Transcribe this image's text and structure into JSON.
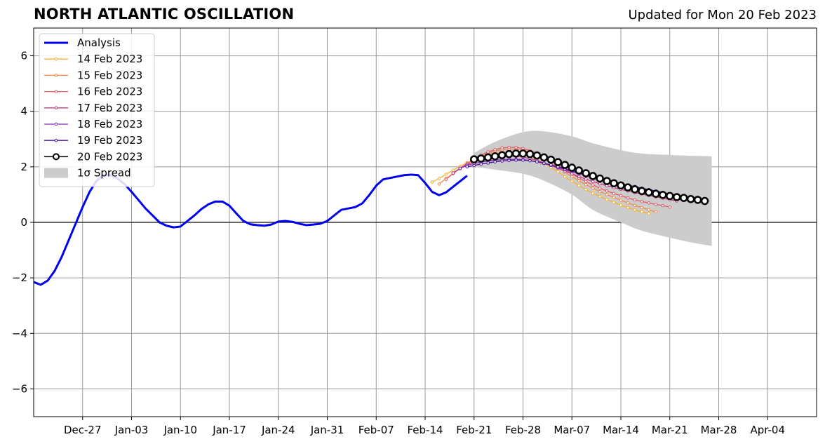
{
  "chart_data": {
    "type": "line",
    "title": "NORTH ATLANTIC OSCILLATION",
    "subtitle": "Updated for Mon 20 Feb 2023",
    "xlabel": "",
    "ylabel": "",
    "xlim": [
      "2022-12-20",
      "2023-04-11"
    ],
    "ylim": [
      -7,
      7
    ],
    "grid": true,
    "legend_position": "top-left",
    "x_tick_labels": [
      "Dec-27",
      "Jan-03",
      "Jan-10",
      "Jan-17",
      "Jan-24",
      "Jan-31",
      "Feb-07",
      "Feb-14",
      "Feb-21",
      "Feb-28",
      "Mar-07",
      "Mar-14",
      "Mar-21",
      "Mar-28",
      "Apr-04"
    ],
    "y_ticks": [
      -6,
      -4,
      -2,
      0,
      2,
      4,
      6
    ],
    "y_tick_labels": [
      "−6",
      "−4",
      "−2",
      "0",
      "2",
      "4",
      "6"
    ],
    "spread": {
      "name": "1σ Spread",
      "color": "#cccccc",
      "x": [
        "2023-02-21",
        "2023-02-24",
        "2023-02-28",
        "2023-03-03",
        "2023-03-07",
        "2023-03-10",
        "2023-03-14",
        "2023-03-17",
        "2023-03-21",
        "2023-03-24",
        "2023-03-27"
      ],
      "upper": [
        2.5,
        2.9,
        3.25,
        3.28,
        3.1,
        2.85,
        2.6,
        2.48,
        2.43,
        2.4,
        2.38
      ],
      "lower": [
        2.0,
        1.9,
        1.75,
        1.5,
        1.0,
        0.45,
        0.0,
        -0.3,
        -0.55,
        -0.72,
        -0.85
      ]
    },
    "series": [
      {
        "name": "Analysis",
        "color": "#0000ee",
        "x": [
          "2022-12-20",
          "2022-12-21",
          "2022-12-22",
          "2022-12-23",
          "2022-12-24",
          "2022-12-25",
          "2022-12-26",
          "2022-12-27",
          "2022-12-28",
          "2022-12-29",
          "2022-12-30",
          "2022-12-31",
          "2023-01-01",
          "2023-01-02",
          "2023-01-03",
          "2023-01-04",
          "2023-01-05",
          "2023-01-06",
          "2023-01-07",
          "2023-01-08",
          "2023-01-09",
          "2023-01-10",
          "2023-01-11",
          "2023-01-12",
          "2023-01-13",
          "2023-01-14",
          "2023-01-15",
          "2023-01-16",
          "2023-01-17",
          "2023-01-18",
          "2023-01-19",
          "2023-01-20",
          "2023-01-21",
          "2023-01-22",
          "2023-01-23",
          "2023-01-24",
          "2023-01-25",
          "2023-01-26",
          "2023-01-27",
          "2023-01-28",
          "2023-01-29",
          "2023-01-30",
          "2023-01-31",
          "2023-02-01",
          "2023-02-02",
          "2023-02-03",
          "2023-02-04",
          "2023-02-05",
          "2023-02-06",
          "2023-02-07",
          "2023-02-08",
          "2023-02-09",
          "2023-02-10",
          "2023-02-11",
          "2023-02-12",
          "2023-02-13",
          "2023-02-14",
          "2023-02-15",
          "2023-02-16",
          "2023-02-17",
          "2023-02-18",
          "2023-02-19",
          "2023-02-20"
        ],
        "y": [
          -2.15,
          -2.25,
          -2.1,
          -1.75,
          -1.25,
          -0.65,
          -0.05,
          0.55,
          1.1,
          1.5,
          1.7,
          1.7,
          1.58,
          1.38,
          1.1,
          0.8,
          0.5,
          0.25,
          0.0,
          -0.12,
          -0.18,
          -0.15,
          0.05,
          0.25,
          0.48,
          0.65,
          0.75,
          0.75,
          0.6,
          0.32,
          0.05,
          -0.07,
          -0.1,
          -0.12,
          -0.08,
          0.03,
          0.05,
          0.02,
          -0.05,
          -0.1,
          -0.08,
          -0.05,
          0.05,
          0.25,
          0.45,
          0.5,
          0.55,
          0.68,
          0.98,
          1.32,
          1.55,
          1.6,
          1.65,
          1.7,
          1.72,
          1.7,
          1.42,
          1.1,
          0.98,
          1.08,
          1.28,
          1.48,
          1.68
        ]
      },
      {
        "name": "14 Feb 2023",
        "color": "#f5b030",
        "x": [
          "2023-02-15",
          "2023-02-16",
          "2023-02-17",
          "2023-02-18",
          "2023-02-19",
          "2023-02-20",
          "2023-02-21",
          "2023-02-22",
          "2023-02-23",
          "2023-02-24",
          "2023-02-25",
          "2023-02-26",
          "2023-02-27",
          "2023-02-28",
          "2023-03-01",
          "2023-03-02",
          "2023-03-03",
          "2023-03-04",
          "2023-03-05",
          "2023-03-06",
          "2023-03-07",
          "2023-03-08",
          "2023-03-09",
          "2023-03-10",
          "2023-03-11",
          "2023-03-12",
          "2023-03-13",
          "2023-03-14",
          "2023-03-15",
          "2023-03-16",
          "2023-03-17",
          "2023-03-18"
        ],
        "y": [
          1.45,
          1.58,
          1.73,
          1.88,
          2.02,
          2.15,
          2.27,
          2.37,
          2.44,
          2.49,
          2.51,
          2.51,
          2.48,
          2.43,
          2.36,
          2.26,
          2.13,
          1.98,
          1.82,
          1.64,
          1.48,
          1.33,
          1.18,
          1.05,
          0.93,
          0.82,
          0.72,
          0.62,
          0.53,
          0.45,
          0.38,
          0.32
        ]
      },
      {
        "name": "15 Feb 2023",
        "color": "#f08a4a",
        "x": [
          "2023-02-16",
          "2023-02-17",
          "2023-02-18",
          "2023-02-19",
          "2023-02-20",
          "2023-02-21",
          "2023-02-22",
          "2023-02-23",
          "2023-02-24",
          "2023-02-25",
          "2023-02-26",
          "2023-02-27",
          "2023-02-28",
          "2023-03-01",
          "2023-03-02",
          "2023-03-03",
          "2023-03-04",
          "2023-03-05",
          "2023-03-06",
          "2023-03-07",
          "2023-03-08",
          "2023-03-09",
          "2023-03-10",
          "2023-03-11",
          "2023-03-12",
          "2023-03-13",
          "2023-03-14",
          "2023-03-15",
          "2023-03-16",
          "2023-03-17",
          "2023-03-18",
          "2023-03-19"
        ],
        "y": [
          1.38,
          1.58,
          1.76,
          1.93,
          2.08,
          2.22,
          2.36,
          2.48,
          2.57,
          2.62,
          2.64,
          2.64,
          2.6,
          2.53,
          2.43,
          2.3,
          2.15,
          1.98,
          1.81,
          1.65,
          1.5,
          1.36,
          1.23,
          1.11,
          1.0,
          0.9,
          0.8,
          0.7,
          0.61,
          0.53,
          0.45,
          0.38
        ]
      },
      {
        "name": "16 Feb 2023",
        "color": "#e05a68",
        "x": [
          "2023-02-17",
          "2023-02-18",
          "2023-02-19",
          "2023-02-20",
          "2023-02-21",
          "2023-02-22",
          "2023-02-23",
          "2023-02-24",
          "2023-02-25",
          "2023-02-26",
          "2023-02-27",
          "2023-02-28",
          "2023-03-01",
          "2023-03-02",
          "2023-03-03",
          "2023-03-04",
          "2023-03-05",
          "2023-03-06",
          "2023-03-07",
          "2023-03-08",
          "2023-03-09",
          "2023-03-10",
          "2023-03-11",
          "2023-03-12",
          "2023-03-13",
          "2023-03-14",
          "2023-03-15",
          "2023-03-16",
          "2023-03-17",
          "2023-03-18",
          "2023-03-19",
          "2023-03-20",
          "2023-03-21"
        ],
        "y": [
          1.55,
          1.76,
          1.95,
          2.12,
          2.28,
          2.42,
          2.54,
          2.62,
          2.68,
          2.7,
          2.7,
          2.66,
          2.59,
          2.49,
          2.36,
          2.21,
          2.06,
          1.9,
          1.75,
          1.6,
          1.47,
          1.35,
          1.23,
          1.13,
          1.04,
          0.96,
          0.88,
          0.81,
          0.75,
          0.7,
          0.65,
          0.6,
          0.55
        ]
      },
      {
        "name": "17 Feb 2023",
        "color": "#c03b86",
        "x": [
          "2023-02-18",
          "2023-02-19",
          "2023-02-20",
          "2023-02-21",
          "2023-02-22",
          "2023-02-23",
          "2023-02-24",
          "2023-02-25",
          "2023-02-26",
          "2023-02-27",
          "2023-02-28",
          "2023-03-01",
          "2023-03-02",
          "2023-03-03",
          "2023-03-04",
          "2023-03-05",
          "2023-03-06",
          "2023-03-07",
          "2023-03-08",
          "2023-03-09",
          "2023-03-10",
          "2023-03-11",
          "2023-03-12",
          "2023-03-13",
          "2023-03-14",
          "2023-03-15",
          "2023-03-16",
          "2023-03-17",
          "2023-03-18",
          "2023-03-19",
          "2023-03-20",
          "2023-03-21",
          "2023-03-22"
        ],
        "y": [
          1.78,
          1.95,
          2.08,
          2.18,
          2.26,
          2.32,
          2.36,
          2.38,
          2.39,
          2.38,
          2.35,
          2.3,
          2.23,
          2.14,
          2.05,
          1.95,
          1.85,
          1.75,
          1.65,
          1.56,
          1.47,
          1.39,
          1.32,
          1.25,
          1.19,
          1.13,
          1.07,
          1.02,
          0.97,
          0.92,
          0.87,
          0.82,
          0.77
        ]
      },
      {
        "name": "18 Feb 2023",
        "color": "#8a2ab8",
        "x": [
          "2023-02-19",
          "2023-02-20",
          "2023-02-21",
          "2023-02-22",
          "2023-02-23",
          "2023-02-24",
          "2023-02-25",
          "2023-02-26",
          "2023-02-27",
          "2023-02-28",
          "2023-03-01",
          "2023-03-02",
          "2023-03-03",
          "2023-03-04",
          "2023-03-05",
          "2023-03-06",
          "2023-03-07",
          "2023-03-08",
          "2023-03-09",
          "2023-03-10",
          "2023-03-11",
          "2023-03-12",
          "2023-03-13",
          "2023-03-14",
          "2023-03-15",
          "2023-03-16",
          "2023-03-17",
          "2023-03-18",
          "2023-03-19",
          "2023-03-20",
          "2023-03-21",
          "2023-03-22",
          "2023-03-23",
          "2023-03-24"
        ],
        "y": [
          1.95,
          2.05,
          2.12,
          2.17,
          2.21,
          2.24,
          2.26,
          2.27,
          2.27,
          2.26,
          2.23,
          2.18,
          2.12,
          2.05,
          1.98,
          1.9,
          1.82,
          1.75,
          1.67,
          1.6,
          1.53,
          1.47,
          1.41,
          1.36,
          1.3,
          1.25,
          1.2,
          1.15,
          1.1,
          1.05,
          1.0,
          0.95,
          0.9,
          0.85
        ]
      },
      {
        "name": "19 Feb 2023",
        "color": "#4b14a0",
        "x": [
          "2023-02-20",
          "2023-02-21",
          "2023-02-22",
          "2023-02-23",
          "2023-02-24",
          "2023-02-25",
          "2023-02-26",
          "2023-02-27",
          "2023-02-28",
          "2023-03-01",
          "2023-03-02",
          "2023-03-03",
          "2023-03-04",
          "2023-03-05",
          "2023-03-06",
          "2023-03-07",
          "2023-03-08",
          "2023-03-09",
          "2023-03-10",
          "2023-03-11",
          "2023-03-12",
          "2023-03-13",
          "2023-03-14",
          "2023-03-15",
          "2023-03-16",
          "2023-03-17",
          "2023-03-18",
          "2023-03-19",
          "2023-03-20",
          "2023-03-21",
          "2023-03-22",
          "2023-03-23",
          "2023-03-24",
          "2023-03-25"
        ],
        "y": [
          2.0,
          2.05,
          2.1,
          2.14,
          2.18,
          2.21,
          2.23,
          2.24,
          2.24,
          2.22,
          2.18,
          2.13,
          2.07,
          2.0,
          1.93,
          1.86,
          1.79,
          1.72,
          1.65,
          1.58,
          1.52,
          1.46,
          1.4,
          1.34,
          1.29,
          1.23,
          1.18,
          1.13,
          1.08,
          1.03,
          0.98,
          0.93,
          0.88,
          0.83
        ]
      },
      {
        "name": "20 Feb 2023",
        "color": "#000000",
        "x": [
          "2023-02-21",
          "2023-02-22",
          "2023-02-23",
          "2023-02-24",
          "2023-02-25",
          "2023-02-26",
          "2023-02-27",
          "2023-02-28",
          "2023-03-01",
          "2023-03-02",
          "2023-03-03",
          "2023-03-04",
          "2023-03-05",
          "2023-03-06",
          "2023-03-07",
          "2023-03-08",
          "2023-03-09",
          "2023-03-10",
          "2023-03-11",
          "2023-03-12",
          "2023-03-13",
          "2023-03-14",
          "2023-03-15",
          "2023-03-16",
          "2023-03-17",
          "2023-03-18",
          "2023-03-19",
          "2023-03-20",
          "2023-03-21",
          "2023-03-22",
          "2023-03-23",
          "2023-03-24",
          "2023-03-25",
          "2023-03-26"
        ],
        "y": [
          2.27,
          2.3,
          2.34,
          2.38,
          2.42,
          2.46,
          2.48,
          2.48,
          2.46,
          2.41,
          2.34,
          2.26,
          2.17,
          2.07,
          1.97,
          1.87,
          1.77,
          1.67,
          1.58,
          1.49,
          1.41,
          1.33,
          1.26,
          1.19,
          1.13,
          1.08,
          1.03,
          0.99,
          0.95,
          0.91,
          0.88,
          0.84,
          0.81,
          0.77
        ]
      }
    ]
  }
}
